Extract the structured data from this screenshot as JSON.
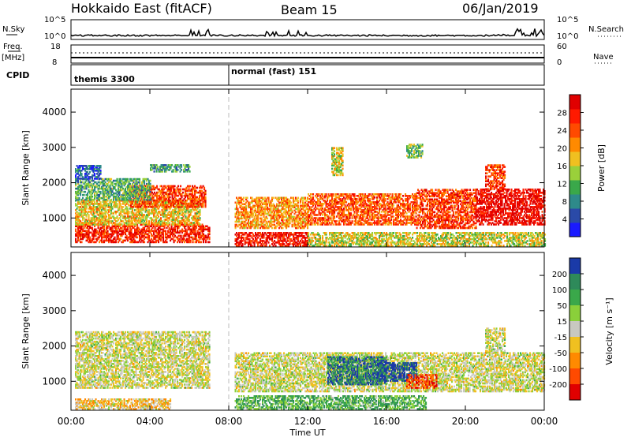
{
  "header": {
    "station": "Hokkaido East (fitACF)",
    "beam": "Beam 15",
    "date": "06/Jan/2019"
  },
  "strip_labels": {
    "nsky": "N.Sky",
    "nsearch": "N.Search",
    "freq_top": "Freq.",
    "freq_unit": "[MHz]",
    "nave": "Nave",
    "cpid": "CPID",
    "nsky_ticks": [
      "10^5",
      "10^0"
    ],
    "nsearch_ticks": [
      "10^5",
      "10^0"
    ],
    "freq_ticks": [
      "18",
      "8"
    ],
    "nave_ticks": [
      "60",
      "0"
    ]
  },
  "cpid_segments": [
    {
      "label": "themis 3300",
      "start_hour": 0
    },
    {
      "label": "normal (fast) 151",
      "start_hour": 8
    }
  ],
  "chart_data": [
    {
      "type": "heatmap",
      "panel": "power",
      "ylabel": "Slant Range [km]",
      "xlabel": "Time UT",
      "x_ticks": [
        "00:00",
        "04:00",
        "08:00",
        "12:00",
        "16:00",
        "20:00",
        "00:00"
      ],
      "x_hours": [
        0,
        4,
        8,
        12,
        16,
        20,
        24
      ],
      "y_ticks": [
        1000,
        2000,
        3000,
        4000
      ],
      "ylim": [
        180,
        4650
      ],
      "xlim": [
        0,
        24
      ],
      "colorbar": {
        "label": "Power [dB]",
        "ticks": [
          "4",
          "8",
          "12",
          "16",
          "20",
          "24",
          "28"
        ],
        "colors": [
          "#1a1aff",
          "#2a4aa8",
          "#2e8a8a",
          "#3aa84a",
          "#9ad03a",
          "#f0c020",
          "#ff8a00",
          "#ff4a00",
          "#ff1a00",
          "#e00000"
        ]
      },
      "features": [
        {
          "t0": 0.2,
          "t1": 7.0,
          "r0": 300,
          "r1": 800,
          "v": 0.85
        },
        {
          "t0": 0.2,
          "t1": 6.5,
          "r0": 800,
          "r1": 1500,
          "v": 0.55
        },
        {
          "t0": 3.0,
          "t1": 6.8,
          "r0": 1300,
          "r1": 1900,
          "v": 0.8
        },
        {
          "t0": 0.2,
          "t1": 4.0,
          "r0": 1500,
          "r1": 2100,
          "v": 0.35
        },
        {
          "t0": 0.2,
          "t1": 1.5,
          "r0": 2100,
          "r1": 2500,
          "v": 0.15
        },
        {
          "t0": 8.3,
          "t1": 12.0,
          "r0": 200,
          "r1": 600,
          "v": 0.9
        },
        {
          "t0": 8.3,
          "t1": 12.0,
          "r0": 700,
          "r1": 1600,
          "v": 0.65
        },
        {
          "t0": 12.0,
          "t1": 17.5,
          "r0": 800,
          "r1": 1700,
          "v": 0.75
        },
        {
          "t0": 12.0,
          "t1": 24.0,
          "r0": 200,
          "r1": 600,
          "v": 0.5
        },
        {
          "t0": 17.5,
          "t1": 20.5,
          "r0": 700,
          "r1": 1800,
          "v": 0.8
        },
        {
          "t0": 20.5,
          "t1": 24.0,
          "r0": 800,
          "r1": 1800,
          "v": 0.95
        },
        {
          "t0": 13.2,
          "t1": 13.8,
          "r0": 2200,
          "r1": 3000,
          "v": 0.5
        },
        {
          "t0": 17.0,
          "t1": 17.8,
          "r0": 2700,
          "r1": 3100,
          "v": 0.4
        },
        {
          "t0": 21.0,
          "t1": 22.0,
          "r0": 1800,
          "r1": 2500,
          "v": 0.8
        },
        {
          "t0": 4.0,
          "t1": 6.0,
          "r0": 2300,
          "r1": 2500,
          "v": 0.3
        }
      ]
    },
    {
      "type": "heatmap",
      "panel": "velocity",
      "ylabel": "Slant Range [km]",
      "xlabel": "Time UT",
      "x_ticks": [
        "00:00",
        "04:00",
        "08:00",
        "12:00",
        "16:00",
        "20:00",
        "00:00"
      ],
      "x_hours": [
        0,
        4,
        8,
        12,
        16,
        20,
        24
      ],
      "y_ticks": [
        1000,
        2000,
        3000,
        4000
      ],
      "ylim": [
        180,
        4650
      ],
      "xlim": [
        0,
        24
      ],
      "colorbar": {
        "label": "Velocity [m s⁻¹]",
        "ticks": [
          "200",
          "100",
          "50",
          "15",
          "-15",
          "-50",
          "-100",
          "-200"
        ],
        "colors": [
          "#1a3aa8",
          "#2e8a5a",
          "#3aa84a",
          "#8ad03a",
          "#c8c8c0",
          "#f0c020",
          "#ff8a00",
          "#ff4a00",
          "#e00000"
        ]
      },
      "features": [
        {
          "t0": 0.2,
          "t1": 7.0,
          "r0": 800,
          "r1": 2400,
          "v": 0.5
        },
        {
          "t0": 0.2,
          "t1": 5.0,
          "r0": 200,
          "r1": 500,
          "v": 0.6
        },
        {
          "t0": 8.3,
          "t1": 24.0,
          "r0": 700,
          "r1": 1800,
          "v": 0.5
        },
        {
          "t0": 8.3,
          "t1": 18.0,
          "r0": 200,
          "r1": 600,
          "v": 0.3
        },
        {
          "t0": 13.0,
          "t1": 16.0,
          "r0": 900,
          "r1": 1700,
          "v": 0.15
        },
        {
          "t0": 15.5,
          "t1": 17.5,
          "r0": 1000,
          "r1": 1500,
          "v": 0.05
        },
        {
          "t0": 17.0,
          "t1": 18.5,
          "r0": 800,
          "r1": 1200,
          "v": 0.85
        },
        {
          "t0": 21.0,
          "t1": 22.0,
          "r0": 1800,
          "r1": 2500,
          "v": 0.5
        }
      ]
    }
  ]
}
